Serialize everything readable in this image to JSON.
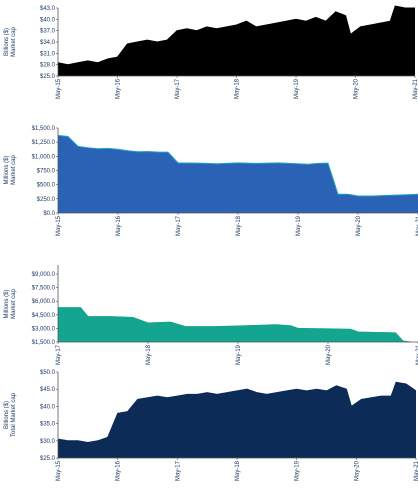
{
  "chart_data": [
    {
      "type": "area",
      "ylabel": [
        "Billions ($)",
        "Market cap"
      ],
      "ylim": [
        25,
        43
      ],
      "yticks": [
        25,
        28,
        31,
        34,
        37,
        40,
        43
      ],
      "ytick_labels": [
        "$25.0",
        "$28.0",
        "$31.0",
        "$34.0",
        "$37.0",
        "$40.0",
        "$43.0"
      ],
      "xlim": [
        "2015-05",
        "2021-05"
      ],
      "xticks": [
        "2015-05",
        "2016-05",
        "2017-05",
        "2018-05",
        "2019-05",
        "2020-05",
        "2021-05"
      ],
      "xtick_labels": [
        "May-15",
        "May-16",
        "May-17",
        "May-18",
        "May-19",
        "May-20",
        "May-21"
      ],
      "fill": "#000000",
      "stroke": "#000000",
      "grid": false,
      "series": [
        {
          "x": [
            "2015-05",
            "2015-07",
            "2015-09",
            "2015-11",
            "2016-01",
            "2016-03",
            "2016-05",
            "2016-07",
            "2016-09",
            "2016-11",
            "2017-01",
            "2017-03",
            "2017-05",
            "2017-07",
            "2017-09",
            "2017-11",
            "2018-01",
            "2018-03",
            "2018-05",
            "2018-07",
            "2018-09",
            "2018-11",
            "2019-01",
            "2019-03",
            "2019-05",
            "2019-07",
            "2019-09",
            "2019-11",
            "2020-01",
            "2020-03",
            "2020-04",
            "2020-06",
            "2020-08",
            "2020-10",
            "2020-12",
            "2021-01",
            "2021-03",
            "2021-05"
          ],
          "values": [
            28.5,
            28,
            28.5,
            29,
            28.5,
            29.5,
            30,
            33.5,
            34,
            34.5,
            34,
            34.5,
            37,
            37.5,
            37,
            38,
            37.5,
            38,
            38.5,
            39.5,
            38,
            38.5,
            39,
            39.5,
            40,
            39.5,
            40.5,
            39.5,
            42,
            41,
            36,
            38,
            38.5,
            39,
            39.5,
            43.5,
            43,
            43
          ]
        }
      ]
    },
    {
      "type": "area",
      "ylabel": [
        "Millions ($)",
        "Market cap"
      ],
      "ylim": [
        0,
        1500
      ],
      "yticks": [
        0,
        250,
        500,
        750,
        1000,
        1250,
        1500
      ],
      "ytick_labels": [
        "$0.0",
        "$250.0",
        "$500.0",
        "$750.0",
        "$1,000.0",
        "$1,250.0",
        "$1,500.0"
      ],
      "xlim": [
        "2015-05",
        "2021-05"
      ],
      "xticks": [
        "2015-05",
        "2016-05",
        "2017-05",
        "2018-05",
        "2019-05",
        "2020-05",
        "2021-05"
      ],
      "xtick_labels": [
        "May-15",
        "May-16",
        "May-17",
        "May-18",
        "May-19",
        "May-20",
        "May-21"
      ],
      "fill": "#2a62b5",
      "stroke": "#1ea3c8",
      "grid": false,
      "series": [
        {
          "x": [
            "2015-05",
            "2015-07",
            "2015-09",
            "2015-11",
            "2016-01",
            "2016-03",
            "2016-05",
            "2016-07",
            "2016-09",
            "2016-11",
            "2017-01",
            "2017-03",
            "2017-05",
            "2017-09",
            "2018-01",
            "2018-05",
            "2018-09",
            "2019-01",
            "2019-05",
            "2019-07",
            "2019-09",
            "2019-11",
            "2020-01",
            "2020-03",
            "2020-05",
            "2020-08",
            "2020-11",
            "2021-02",
            "2021-05"
          ],
          "values": [
            1370,
            1350,
            1175,
            1150,
            1135,
            1140,
            1125,
            1100,
            1080,
            1085,
            1075,
            1075,
            885,
            880,
            870,
            885,
            875,
            885,
            870,
            860,
            875,
            880,
            330,
            330,
            300,
            300,
            310,
            320,
            330
          ]
        }
      ]
    },
    {
      "type": "area",
      "ylabel": [
        "Millions ($)",
        "Market cap"
      ],
      "ylim": [
        1500,
        10000
      ],
      "yticks": [
        1500,
        3000,
        4500,
        6000,
        7500,
        9000
      ],
      "ytick_labels": [
        "$1,500.0",
        "$3,000.0",
        "$4,500.0",
        "$6,000.0",
        "$7,500.0",
        "$9,000.0"
      ],
      "xlim": [
        "2017-05",
        "2021-05"
      ],
      "xticks": [
        "2017-05",
        "2018-05",
        "2019-05",
        "2020-05",
        "2021-05"
      ],
      "xtick_labels": [
        "May-17",
        "May-18",
        "May-19",
        "May-20",
        "May-21"
      ],
      "fill": "#13a58f",
      "stroke": "#13a58f",
      "grid": false,
      "series": [
        {
          "x": [
            "2017-05",
            "2017-08",
            "2017-09",
            "2017-12",
            "2018-03",
            "2018-05",
            "2018-08",
            "2018-10",
            "2019-02",
            "2019-06",
            "2019-10",
            "2019-12",
            "2020-01",
            "2020-05",
            "2020-08",
            "2020-09",
            "2021-02",
            "2021-03",
            "2021-04"
          ],
          "values": [
            5300,
            5300,
            4300,
            4300,
            4200,
            3600,
            3700,
            3200,
            3200,
            3300,
            3400,
            3300,
            3000,
            2950,
            2900,
            2600,
            2500,
            1600,
            1500
          ]
        }
      ]
    },
    {
      "type": "area",
      "ylabel": [
        "Billions ($)",
        "Total Market cap"
      ],
      "ylim": [
        25,
        50
      ],
      "yticks": [
        25,
        30,
        35,
        40,
        45,
        50
      ],
      "ytick_labels": [
        "$25.0",
        "$30.0",
        "$35.0",
        "$40.0",
        "$45.0",
        "$50.0"
      ],
      "xlim": [
        "2015-05",
        "2021-05"
      ],
      "xticks": [
        "2015-05",
        "2016-05",
        "2017-05",
        "2018-05",
        "2019-05",
        "2020-05",
        "2021-05"
      ],
      "xtick_labels": [
        "May-15",
        "May-16",
        "May-17",
        "May-18",
        "May-19",
        "May-20",
        "May-21"
      ],
      "fill": "#0d2b57",
      "stroke": "#0d2b57",
      "grid": false,
      "series": [
        {
          "x": [
            "2015-05",
            "2015-07",
            "2015-09",
            "2015-11",
            "2016-01",
            "2016-03",
            "2016-05",
            "2016-07",
            "2016-09",
            "2016-11",
            "2017-01",
            "2017-03",
            "2017-05",
            "2017-07",
            "2017-09",
            "2017-11",
            "2018-01",
            "2018-03",
            "2018-05",
            "2018-07",
            "2018-09",
            "2018-11",
            "2019-01",
            "2019-03",
            "2019-05",
            "2019-07",
            "2019-09",
            "2019-11",
            "2020-01",
            "2020-03",
            "2020-04",
            "2020-06",
            "2020-08",
            "2020-10",
            "2020-12",
            "2021-01",
            "2021-03",
            "2021-05"
          ],
          "values": [
            30.5,
            30,
            30,
            29.5,
            30,
            31,
            38,
            38.5,
            42,
            42.5,
            43,
            42.5,
            43,
            43.5,
            43.5,
            44,
            43.5,
            44,
            44.5,
            45,
            44,
            43.5,
            44,
            44.5,
            45,
            44.5,
            45,
            44.5,
            46,
            45,
            40,
            42,
            42.5,
            43,
            43,
            47,
            46.5,
            44.5
          ]
        }
      ]
    }
  ]
}
